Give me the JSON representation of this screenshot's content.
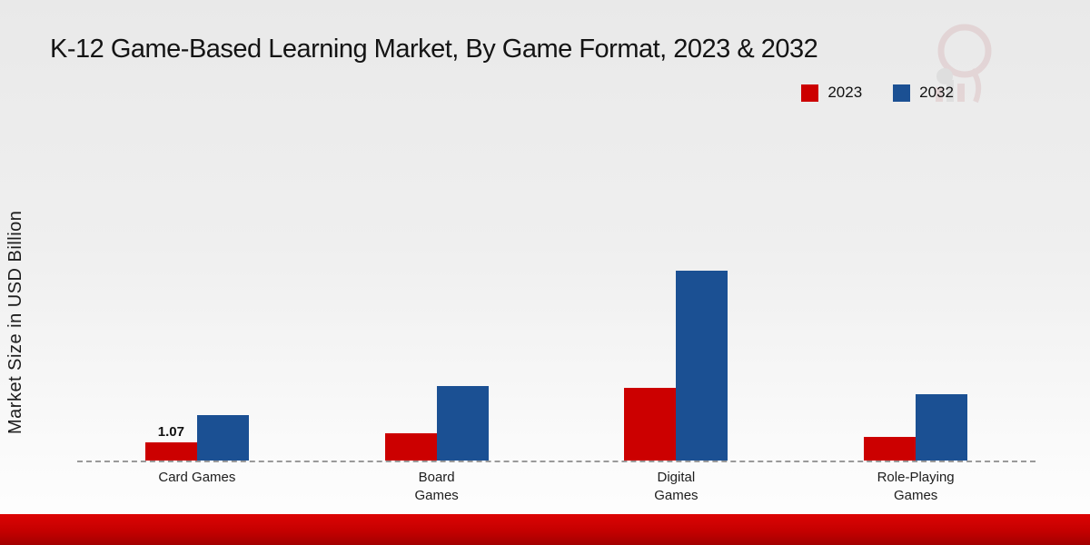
{
  "title": "K-12 Game-Based Learning Market, By Game Format, 2023 & 2032",
  "ylabel": "Market Size in USD Billion",
  "colors": {
    "red": "#cc0000",
    "blue": "#1b5093"
  },
  "chart_data": {
    "type": "bar",
    "title": "K-12 Game-Based Learning Market, By Game Format, 2023 & 2032",
    "xlabel": "",
    "ylabel": "Market Size in USD Billion",
    "categories": [
      "Card Games",
      "Board\nGames",
      "Digital\nGames",
      "Role-Playing\nGames"
    ],
    "series": [
      {
        "name": "2023",
        "color": "#cc0000",
        "values": [
          1.07,
          1.6,
          4.3,
          1.4
        ]
      },
      {
        "name": "2032",
        "color": "#1b5093",
        "values": [
          2.7,
          4.4,
          11.2,
          3.9
        ]
      }
    ],
    "annotations": [
      {
        "series": "2023",
        "category_index": 0,
        "text": "1.07"
      }
    ],
    "ylim": [
      0,
      11.5
    ],
    "grid": false,
    "legend_position": "top-right",
    "baseline_style": "dashed"
  }
}
